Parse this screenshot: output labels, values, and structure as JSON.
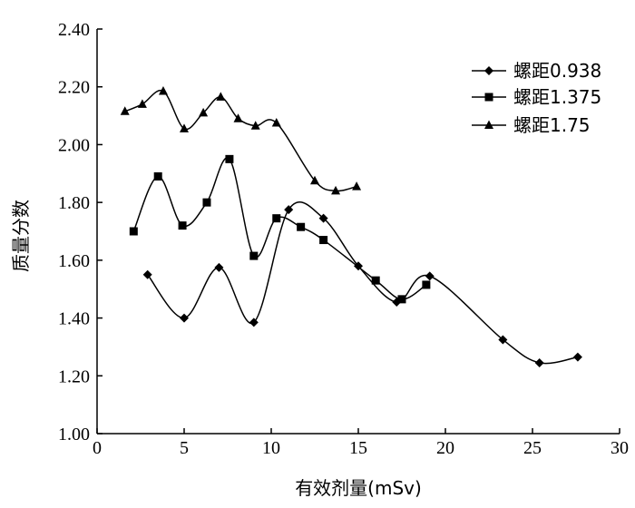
{
  "chart_data": {
    "type": "line",
    "title": "",
    "xlabel": "有效剂量(mSv)",
    "ylabel": "质量分数",
    "xlim": [
      0,
      30
    ],
    "ylim": [
      1.0,
      2.4
    ],
    "xticks": [
      0,
      5,
      10,
      15,
      20,
      25,
      30
    ],
    "yticks": [
      "1.00",
      "1.20",
      "1.40",
      "1.60",
      "1.80",
      "2.00",
      "2.20",
      "2.40"
    ],
    "grid": false,
    "legend_position": "top-right",
    "series": [
      {
        "name": "螺距0.938",
        "marker": "diamond",
        "x": [
          2.9,
          5.0,
          7.0,
          9.0,
          11.0,
          13.0,
          15.0,
          17.2,
          19.1,
          23.3,
          25.4,
          27.6
        ],
        "y": [
          1.55,
          1.4,
          1.575,
          1.385,
          1.775,
          1.745,
          1.58,
          1.455,
          1.545,
          1.325,
          1.245,
          1.265
        ]
      },
      {
        "name": "螺距1.375",
        "marker": "square",
        "x": [
          2.1,
          3.5,
          4.9,
          6.3,
          7.6,
          9.0,
          10.3,
          11.7,
          13.0,
          16.0,
          17.5,
          18.9
        ],
        "y": [
          1.7,
          1.89,
          1.72,
          1.8,
          1.95,
          1.615,
          1.745,
          1.715,
          1.67,
          1.53,
          1.465,
          1.515
        ]
      },
      {
        "name": "螺距1.75",
        "marker": "triangle",
        "x": [
          1.6,
          2.6,
          3.8,
          5.0,
          6.1,
          7.1,
          8.1,
          9.1,
          10.3,
          12.5,
          13.7,
          14.9
        ],
        "y": [
          2.115,
          2.14,
          2.185,
          2.055,
          2.11,
          2.165,
          2.09,
          2.065,
          2.075,
          1.875,
          1.84,
          1.855
        ]
      }
    ]
  }
}
